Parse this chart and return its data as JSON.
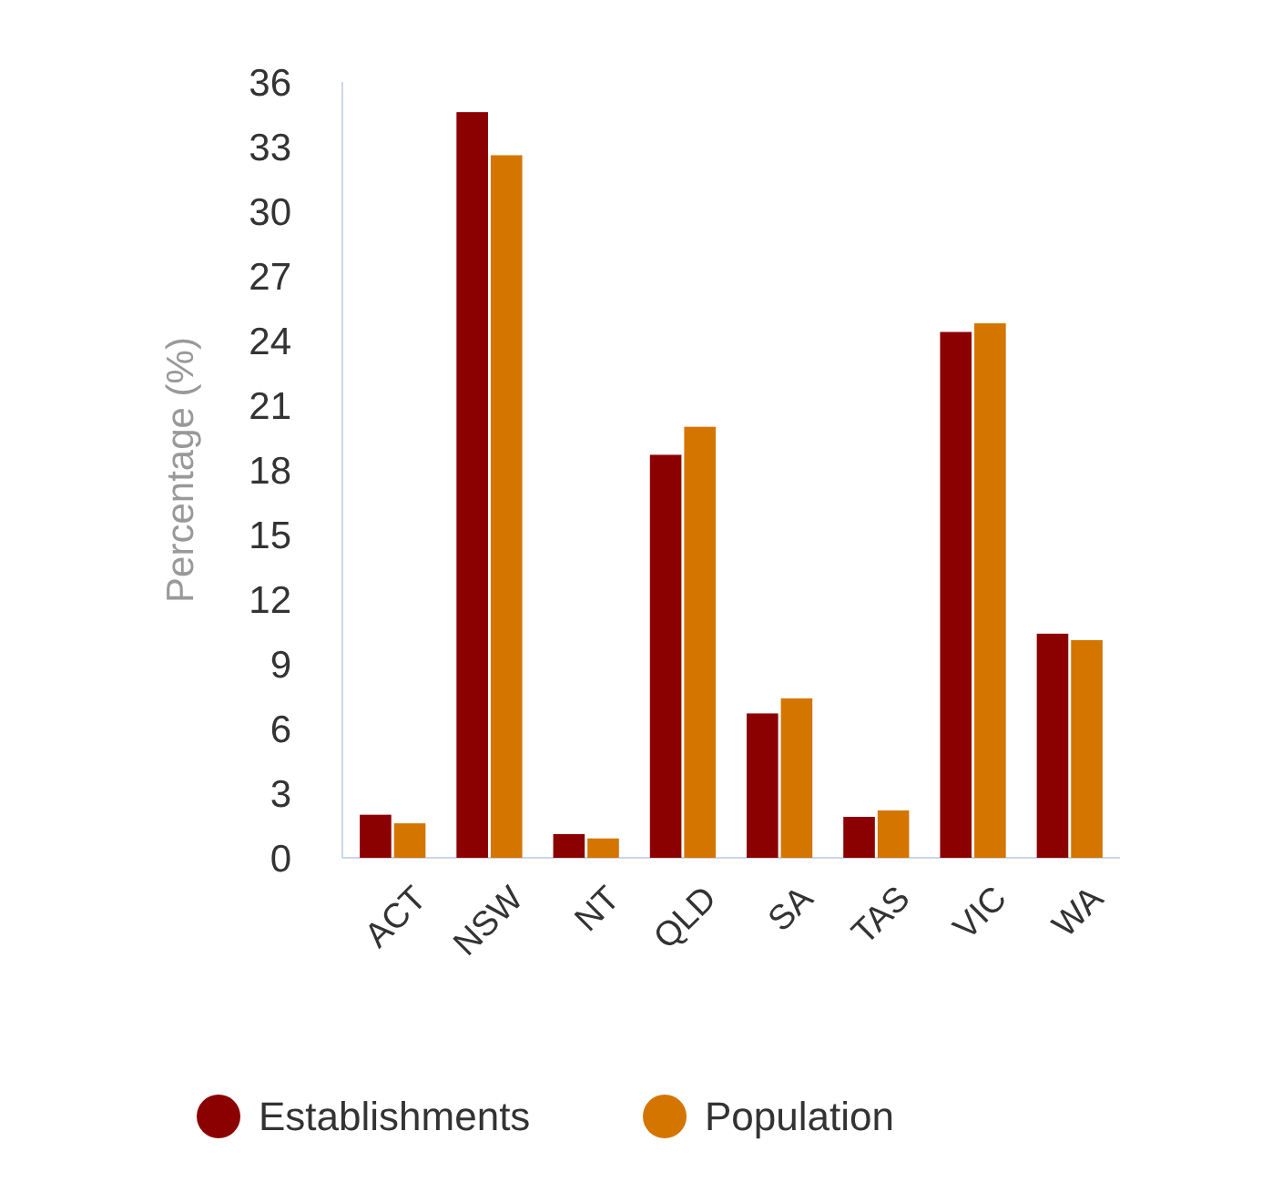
{
  "chart_data": {
    "type": "bar",
    "ylabel": "Percentage (%)",
    "categories": [
      "ACT",
      "NSW",
      "NT",
      "QLD",
      "SA",
      "TAS",
      "VIC",
      "WA"
    ],
    "series": [
      {
        "name": "Establishments",
        "color": "#8b0000",
        "values": [
          2.0,
          34.6,
          1.1,
          18.7,
          6.7,
          1.9,
          24.4,
          10.4
        ]
      },
      {
        "name": "Population",
        "color": "#d47500",
        "values": [
          1.6,
          32.6,
          0.9,
          20.0,
          7.4,
          2.2,
          24.8,
          10.1
        ]
      }
    ],
    "ylim": [
      0,
      36
    ],
    "yticks": [
      0,
      3,
      6,
      9,
      12,
      15,
      18,
      21,
      24,
      27,
      30,
      33,
      36
    ],
    "grid": false,
    "legend": "bottom"
  }
}
